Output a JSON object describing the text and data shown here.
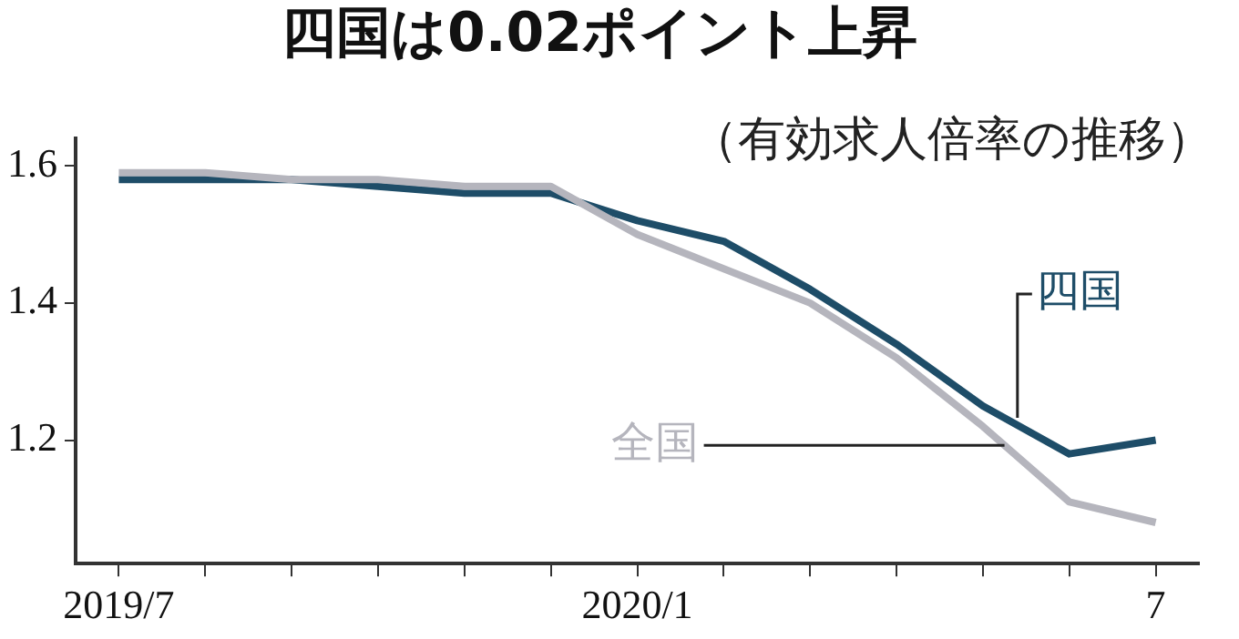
{
  "chart_data": {
    "type": "line",
    "title": "四国は0.02ポイント上昇",
    "subtitle": "（有効求人倍率の推移）",
    "categories": [
      "2019/7",
      null,
      null,
      null,
      null,
      null,
      "2020/1",
      null,
      null,
      null,
      null,
      null,
      "7"
    ],
    "series": [
      {
        "name": "四国",
        "color": "#1e4d68",
        "values": [
          1.58,
          1.58,
          1.58,
          1.57,
          1.56,
          1.56,
          1.52,
          1.49,
          1.42,
          1.34,
          1.25,
          1.18,
          1.2
        ]
      },
      {
        "name": "全国",
        "color": "#b5b5bd",
        "values": [
          1.59,
          1.59,
          1.58,
          1.58,
          1.57,
          1.57,
          1.5,
          1.45,
          1.4,
          1.32,
          1.22,
          1.11,
          1.08
        ]
      }
    ],
    "ylim": [
      1.02,
      1.64
    ],
    "yticks": [
      1.2,
      1.4,
      1.6
    ],
    "legend": false,
    "marker": "none",
    "line_style": "solid"
  }
}
